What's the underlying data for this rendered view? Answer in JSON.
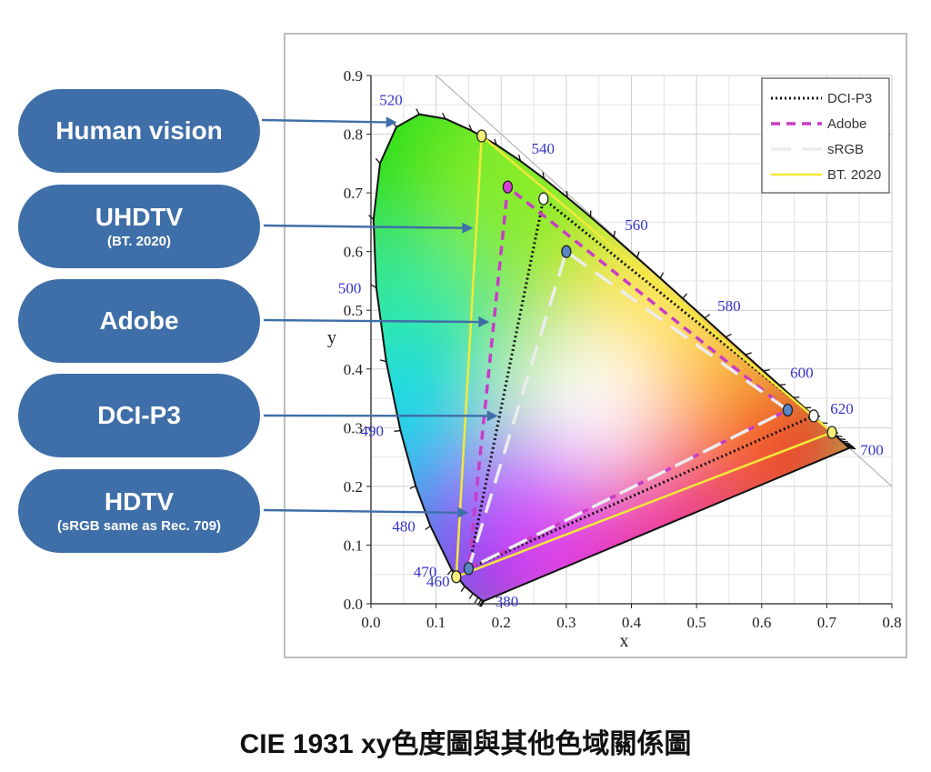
{
  "labels": [
    {
      "main": "Human vision",
      "sub": ""
    },
    {
      "main": "UHDTV",
      "sub": "(BT. 2020)"
    },
    {
      "main": "Adobe",
      "sub": ""
    },
    {
      "main": "DCI-P3",
      "sub": ""
    },
    {
      "main": "HDTV",
      "sub": "(sRGB same as Rec. 709)"
    }
  ],
  "caption": "CIE 1931 xy色度圖與其他色域關係圖",
  "chart_data": {
    "type": "scatter",
    "title": "",
    "xlabel": "x",
    "ylabel": "y",
    "xlim": [
      0,
      0.8
    ],
    "ylim": [
      0,
      0.9
    ],
    "x_ticks": [
      "0.0",
      "0.1",
      "0.2",
      "0.3",
      "0.4",
      "0.5",
      "0.6",
      "0.7",
      "0.8"
    ],
    "y_ticks": [
      "0.0",
      "0.1",
      "0.2",
      "0.3",
      "0.4",
      "0.5",
      "0.6",
      "0.7",
      "0.8",
      "0.9"
    ],
    "grid": true,
    "legend_position": "top-right",
    "wavelength_labels": [
      {
        "text": "380",
        "x": 0.1741,
        "y": 0.005
      },
      {
        "text": "460",
        "x": 0.144,
        "y": 0.0297
      },
      {
        "text": "470",
        "x": 0.1241,
        "y": 0.0578
      },
      {
        "text": "480",
        "x": 0.0913,
        "y": 0.1327
      },
      {
        "text": "490",
        "x": 0.0454,
        "y": 0.295
      },
      {
        "text": "500",
        "x": 0.0082,
        "y": 0.5384
      },
      {
        "text": "520",
        "x": 0.0743,
        "y": 0.8338
      },
      {
        "text": "540",
        "x": 0.2296,
        "y": 0.7543
      },
      {
        "text": "560",
        "x": 0.3731,
        "y": 0.6245
      },
      {
        "text": "580",
        "x": 0.5125,
        "y": 0.4866
      },
      {
        "text": "600",
        "x": 0.627,
        "y": 0.3725
      },
      {
        "text": "620",
        "x": 0.6915,
        "y": 0.3083
      },
      {
        "text": "700",
        "x": 0.7347,
        "y": 0.2653
      }
    ],
    "spectral_locus": [
      [
        0.1741,
        0.005
      ],
      [
        0.1738,
        0.0049
      ],
      [
        0.1733,
        0.0048
      ],
      [
        0.1726,
        0.0048
      ],
      [
        0.1714,
        0.0051
      ],
      [
        0.1689,
        0.0069
      ],
      [
        0.1644,
        0.0109
      ],
      [
        0.1566,
        0.0177
      ],
      [
        0.144,
        0.0297
      ],
      [
        0.1241,
        0.0578
      ],
      [
        0.0913,
        0.1327
      ],
      [
        0.0687,
        0.2007
      ],
      [
        0.0454,
        0.295
      ],
      [
        0.0235,
        0.4127
      ],
      [
        0.0082,
        0.5384
      ],
      [
        0.0039,
        0.6548
      ],
      [
        0.0139,
        0.7502
      ],
      [
        0.0389,
        0.812
      ],
      [
        0.0743,
        0.8338
      ],
      [
        0.1142,
        0.8262
      ],
      [
        0.1547,
        0.8059
      ],
      [
        0.1929,
        0.7816
      ],
      [
        0.2296,
        0.7543
      ],
      [
        0.2658,
        0.7243
      ],
      [
        0.3016,
        0.6923
      ],
      [
        0.3373,
        0.6589
      ],
      [
        0.3731,
        0.6245
      ],
      [
        0.4087,
        0.5896
      ],
      [
        0.4441,
        0.5547
      ],
      [
        0.4788,
        0.5202
      ],
      [
        0.5125,
        0.4866
      ],
      [
        0.5448,
        0.4544
      ],
      [
        0.5752,
        0.4242
      ],
      [
        0.6029,
        0.3965
      ],
      [
        0.627,
        0.3725
      ],
      [
        0.6482,
        0.3514
      ],
      [
        0.6658,
        0.334
      ],
      [
        0.6801,
        0.3197
      ],
      [
        0.6915,
        0.3083
      ],
      [
        0.7006,
        0.2993
      ],
      [
        0.7079,
        0.292
      ],
      [
        0.714,
        0.2859
      ],
      [
        0.719,
        0.2809
      ],
      [
        0.723,
        0.277
      ],
      [
        0.726,
        0.274
      ],
      [
        0.7283,
        0.2717
      ],
      [
        0.73,
        0.27
      ],
      [
        0.7311,
        0.2689
      ],
      [
        0.732,
        0.268
      ],
      [
        0.7334,
        0.2666
      ],
      [
        0.7347,
        0.2653
      ]
    ],
    "series": [
      {
        "name": "DCI-P3",
        "style": "dotted",
        "color": "#111111",
        "points": [
          [
            0.68,
            0.32
          ],
          [
            0.265,
            0.69
          ],
          [
            0.15,
            0.06
          ]
        ]
      },
      {
        "name": "Adobe",
        "style": "dashed",
        "color": "#c83cc8",
        "points": [
          [
            0.64,
            0.33
          ],
          [
            0.21,
            0.71
          ],
          [
            0.15,
            0.06
          ]
        ]
      },
      {
        "name": "sRGB",
        "style": "long-dashed",
        "color": "#ececec",
        "points": [
          [
            0.64,
            0.33
          ],
          [
            0.3,
            0.6
          ],
          [
            0.15,
            0.06
          ]
        ]
      },
      {
        "name": "BT. 2020",
        "style": "solid",
        "color": "#f2e93a",
        "points": [
          [
            0.708,
            0.292
          ],
          [
            0.17,
            0.797
          ],
          [
            0.131,
            0.046
          ]
        ]
      }
    ],
    "primary_markers": [
      {
        "x": 0.708,
        "y": 0.292,
        "color": "#f5f078"
      },
      {
        "x": 0.17,
        "y": 0.797,
        "color": "#f5f078"
      },
      {
        "x": 0.131,
        "y": 0.046,
        "color": "#f5f078"
      },
      {
        "x": 0.21,
        "y": 0.71,
        "color": "#d63fd6"
      },
      {
        "x": 0.265,
        "y": 0.69,
        "color": "#ffffff"
      },
      {
        "x": 0.3,
        "y": 0.6,
        "color": "#5a86c7"
      },
      {
        "x": 0.64,
        "y": 0.33,
        "color": "#5a86c7"
      },
      {
        "x": 0.68,
        "y": 0.32,
        "color": "#ffffff"
      },
      {
        "x": 0.15,
        "y": 0.06,
        "color": "#5a86c7"
      }
    ],
    "arrow_targets": [
      {
        "x": 0.04,
        "y": 0.82
      },
      {
        "x": 0.157,
        "y": 0.64
      },
      {
        "x": 0.182,
        "y": 0.48
      },
      {
        "x": 0.195,
        "y": 0.32
      },
      {
        "x": 0.15,
        "y": 0.155
      }
    ]
  },
  "colors": {
    "pill": "#3f6fa8",
    "arrow": "#3f6fa8",
    "axis_label_blue": "#3333cc"
  }
}
